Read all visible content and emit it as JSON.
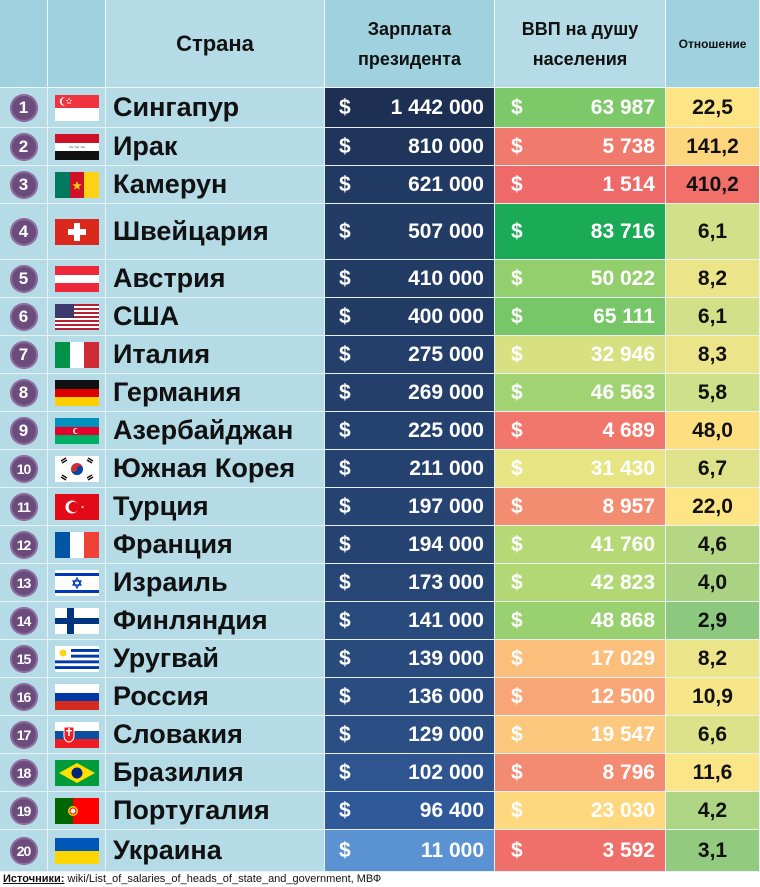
{
  "header": {
    "country": "Страна",
    "salary": "Зарплата президента",
    "gdp": "ВВП на душу населения",
    "ratio": "Отношение"
  },
  "currency_symbol": "$",
  "rows": [
    {
      "rank": "1",
      "flag": "singapore-flag",
      "country": "Сингапур",
      "salary": "1 442 000",
      "gdp": "63 987",
      "ratio": "22,5",
      "salary_color": "#1d2f52",
      "gdp_color": "#7dc96a",
      "ratio_color": "#fde585"
    },
    {
      "rank": "2",
      "flag": "iraq-flag",
      "country": "Ирак",
      "salary": "810 000",
      "gdp": "5 738",
      "ratio": "141,2",
      "salary_color": "#1f355c",
      "gdp_color": "#f07a6c",
      "ratio_color": "#fdd57d"
    },
    {
      "rank": "3",
      "flag": "cameroon-flag",
      "country": "Камерун",
      "salary": "621 000",
      "gdp": "1 514",
      "ratio": "410,2",
      "salary_color": "#213a63",
      "gdp_color": "#ee6a69",
      "ratio_color": "#f2706a"
    },
    {
      "rank": "4",
      "flag": "switzerland-flag",
      "country": "Швейцария",
      "salary": "507 000",
      "gdp": "83 716",
      "ratio": "6,1",
      "salary_color": "#223c66",
      "gdp_color": "#1bab56",
      "ratio_color": "#d3e08a"
    },
    {
      "rank": "5",
      "flag": "austria-flag",
      "country": "Австрия",
      "salary": "410 000",
      "gdp": "50 022",
      "ratio": "8,2",
      "salary_color": "#223c66",
      "gdp_color": "#94cf6e",
      "ratio_color": "#ece489"
    },
    {
      "rank": "6",
      "flag": "usa-flag",
      "country": "США",
      "salary": "400 000",
      "gdp": "65 111",
      "ratio": "6,1",
      "salary_color": "#223c66",
      "gdp_color": "#77c769",
      "ratio_color": "#d3e08a"
    },
    {
      "rank": "7",
      "flag": "italy-flag",
      "country": "Италия",
      "salary": "275 000",
      "gdp": "32 946",
      "ratio": "8,3",
      "salary_color": "#243f6b",
      "gdp_color": "#d8e181",
      "ratio_color": "#ece489"
    },
    {
      "rank": "8",
      "flag": "germany-flag",
      "country": "Германия",
      "salary": "269 000",
      "gdp": "46 563",
      "ratio": "5,8",
      "salary_color": "#243f6b",
      "gdp_color": "#a1d372",
      "ratio_color": "#cfe08a"
    },
    {
      "rank": "9",
      "flag": "azerbaijan-flag",
      "country": "Азербайджан",
      "salary": "225 000",
      "gdp": "4 689",
      "ratio": "48,0",
      "salary_color": "#254170",
      "gdp_color": "#f1766b",
      "ratio_color": "#fedf80"
    },
    {
      "rank": "10",
      "flag": "south-korea-flag",
      "country": "Южная Корея",
      "salary": "211 000",
      "gdp": "31 430",
      "ratio": "6,7",
      "salary_color": "#254170",
      "gdp_color": "#e6e483",
      "ratio_color": "#dee28a"
    },
    {
      "rank": "11",
      "flag": "turkey-flag",
      "country": "Турция",
      "salary": "197 000",
      "gdp": "8 957",
      "ratio": "22,0",
      "salary_color": "#264372",
      "gdp_color": "#f38d72",
      "ratio_color": "#fde585"
    },
    {
      "rank": "12",
      "flag": "france-flag",
      "country": "Франция",
      "salary": "194 000",
      "gdp": "41 760",
      "ratio": "4,6",
      "salary_color": "#264372",
      "gdp_color": "#b7d876",
      "ratio_color": "#b5d785"
    },
    {
      "rank": "13",
      "flag": "israel-flag",
      "country": "Израиль",
      "salary": "173 000",
      "gdp": "42 823",
      "ratio": "4,0",
      "salary_color": "#274676",
      "gdp_color": "#b2d775",
      "ratio_color": "#a9d382"
    },
    {
      "rank": "14",
      "flag": "finland-flag",
      "country": "Финляндия",
      "salary": "141 000",
      "gdp": "48 868",
      "ratio": "2,9",
      "salary_color": "#294a7c",
      "gdp_color": "#99d070",
      "ratio_color": "#8cc97e"
    },
    {
      "rank": "15",
      "flag": "uruguay-flag",
      "country": "Уругвай",
      "salary": "139 000",
      "gdp": "17 029",
      "ratio": "8,2",
      "salary_color": "#294a7c",
      "gdp_color": "#fbbe7b",
      "ratio_color": "#ece489"
    },
    {
      "rank": "16",
      "flag": "russia-flag",
      "country": "Россия",
      "salary": "136 000",
      "gdp": "12 500",
      "ratio": "10,9",
      "salary_color": "#2a4c80",
      "gdp_color": "#f8a677",
      "ratio_color": "#f7e589"
    },
    {
      "rank": "17",
      "flag": "slovakia-flag",
      "country": "Словакия",
      "salary": "129 000",
      "gdp": "19 547",
      "ratio": "6,6",
      "salary_color": "#2b4f84",
      "gdp_color": "#fcc87d",
      "ratio_color": "#dce28a"
    },
    {
      "rank": "18",
      "flag": "brazil-flag",
      "country": "Бразилия",
      "salary": "102 000",
      "gdp": "8 796",
      "ratio": "11,6",
      "salary_color": "#2e5590",
      "gdp_color": "#f38b72",
      "ratio_color": "#fae588"
    },
    {
      "rank": "19",
      "flag": "portugal-flag",
      "country": "Португалия",
      "salary": "96 400",
      "gdp": "23 030",
      "ratio": "4,2",
      "salary_color": "#30599a",
      "gdp_color": "#fdd87f",
      "ratio_color": "#add584"
    },
    {
      "rank": "20",
      "flag": "ukraine-flag",
      "country": "Украина",
      "salary": "11 000",
      "gdp": "3 592",
      "ratio": "3,1",
      "salary_color": "#5b92d2",
      "gdp_color": "#ef6f6a",
      "ratio_color": "#92cb7f"
    }
  ],
  "footer": {
    "label": "Источники:",
    "text": " wiki/List_of_salaries_of_heads_of_state_and_government, МВФ"
  }
}
